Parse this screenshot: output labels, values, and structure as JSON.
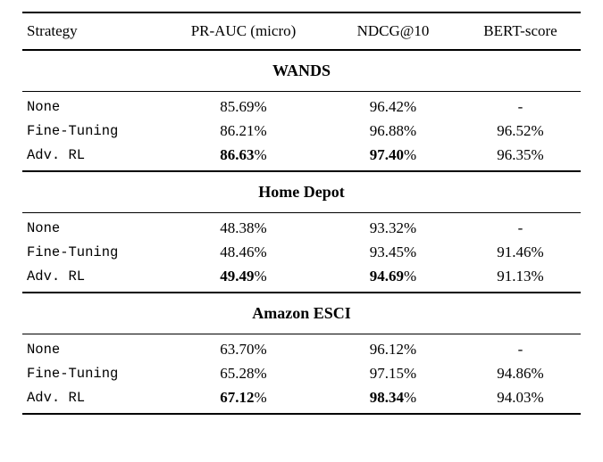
{
  "table": {
    "columns": [
      "Strategy",
      "PR-AUC (micro)",
      "NDCG@10",
      "BERT-score"
    ],
    "sections": [
      {
        "title": "WANDS",
        "rows": [
          {
            "strategy": "None",
            "cells": [
              {
                "value": "85.69",
                "unit": "%",
                "bold": false
              },
              {
                "value": "96.42",
                "unit": "%",
                "bold": false
              },
              {
                "value": "-",
                "unit": "",
                "bold": false
              }
            ]
          },
          {
            "strategy": "Fine-Tuning",
            "cells": [
              {
                "value": "86.21",
                "unit": "%",
                "bold": false
              },
              {
                "value": "96.88",
                "unit": "%",
                "bold": false
              },
              {
                "value": "96.52",
                "unit": "%",
                "bold": false
              }
            ]
          },
          {
            "strategy": "Adv. RL",
            "cells": [
              {
                "value": "86.63",
                "unit": "%",
                "bold": true
              },
              {
                "value": "97.40",
                "unit": "%",
                "bold": true
              },
              {
                "value": "96.35",
                "unit": "%",
                "bold": false
              }
            ]
          }
        ]
      },
      {
        "title": "Home Depot",
        "rows": [
          {
            "strategy": "None",
            "cells": [
              {
                "value": "48.38",
                "unit": "%",
                "bold": false
              },
              {
                "value": "93.32",
                "unit": "%",
                "bold": false
              },
              {
                "value": "-",
                "unit": "",
                "bold": false
              }
            ]
          },
          {
            "strategy": "Fine-Tuning",
            "cells": [
              {
                "value": "48.46",
                "unit": "%",
                "bold": false
              },
              {
                "value": "93.45",
                "unit": "%",
                "bold": false
              },
              {
                "value": "91.46",
                "unit": "%",
                "bold": false
              }
            ]
          },
          {
            "strategy": "Adv. RL",
            "cells": [
              {
                "value": "49.49",
                "unit": "%",
                "bold": true
              },
              {
                "value": "94.69",
                "unit": "%",
                "bold": true
              },
              {
                "value": "91.13",
                "unit": "%",
                "bold": false
              }
            ]
          }
        ]
      },
      {
        "title": "Amazon ESCI",
        "rows": [
          {
            "strategy": "None",
            "cells": [
              {
                "value": "63.70",
                "unit": "%",
                "bold": false
              },
              {
                "value": "96.12",
                "unit": "%",
                "bold": false
              },
              {
                "value": "-",
                "unit": "",
                "bold": false
              }
            ]
          },
          {
            "strategy": "Fine-Tuning",
            "cells": [
              {
                "value": "65.28",
                "unit": "%",
                "bold": false
              },
              {
                "value": "97.15",
                "unit": "%",
                "bold": false
              },
              {
                "value": "94.86",
                "unit": "%",
                "bold": false
              }
            ]
          },
          {
            "strategy": "Adv. RL",
            "cells": [
              {
                "value": "67.12",
                "unit": "%",
                "bold": true
              },
              {
                "value": "98.34",
                "unit": "%",
                "bold": true
              },
              {
                "value": "94.03",
                "unit": "%",
                "bold": false
              }
            ]
          }
        ]
      }
    ]
  }
}
